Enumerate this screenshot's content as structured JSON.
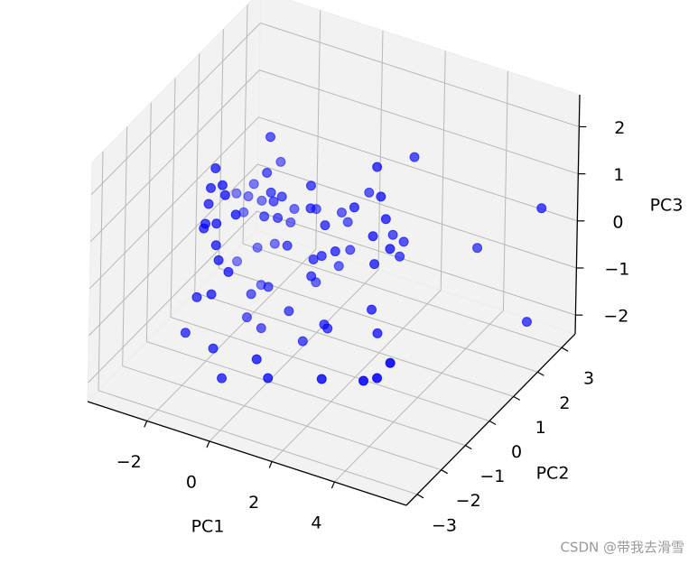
{
  "chart_data": {
    "type": "scatter3d",
    "x_label": "PC1",
    "y_label": "PC2",
    "z_label": "PC3",
    "color": "#0000ff",
    "x": [
      -0.88,
      2.66,
      -1.02,
      -0.97,
      -1.59,
      2.53,
      -0.79,
      -2.43,
      -1.16,
      0.44,
      -2.98,
      -0.7,
      -0.83,
      -2.6,
      -0.48,
      1.24,
      2.67,
      -1.22,
      -2.17,
      -0.74,
      -1.13,
      0.44,
      -0.43,
      1.83,
      -2.74,
      -0.35,
      -1.03,
      0.38,
      -0.6,
      -1.31,
      -0.96,
      -1.24,
      0.91,
      0.58,
      2.84,
      -1.36,
      5.68,
      2.02,
      2.44,
      2.37,
      2.99,
      -0.96,
      3.66,
      -1.73,
      -0.28,
      -2.28,
      1.25,
      0.67,
      0.82,
      -0.87,
      -2.92,
      0.56,
      0.32,
      2.5,
      2.25,
      -0.55,
      0.5,
      -2.14,
      -0.86,
      -0.4,
      -1.54,
      -1.08,
      -1.4,
      -0.19,
      -1.52,
      2.44,
      5.28,
      0.94,
      1.05,
      -1.06,
      -1.88,
      0.27,
      2.64,
      -0.99,
      0.4,
      4.65,
      -0.7,
      0.77,
      2.48,
      3.81,
      4.24
    ],
    "y": [
      0.06,
      1.46,
      -2.05,
      0.06,
      1.46,
      0.06,
      -2.05,
      1.46,
      -2.05,
      0.06,
      1.46,
      -2.05,
      0.06,
      1.46,
      0.06,
      1.46,
      0.06,
      -2.05,
      1.46,
      0.06,
      1.46,
      0.06,
      1.46,
      0.06,
      1.46,
      -2.05,
      0.06,
      1.46,
      0.06,
      -2.05,
      -2.05,
      1.46,
      0.06,
      1.46,
      0.06,
      -2.05,
      2.86,
      1.46,
      0.06,
      1.46,
      0.06,
      -2.05,
      2.86,
      1.46,
      0.06,
      1.46,
      0.06,
      1.46,
      0.06,
      -2.05,
      1.46,
      0.06,
      1.46,
      0.06,
      1.46,
      -2.05,
      0.06,
      1.46,
      0.06,
      1.46,
      -2.05,
      -2.05,
      0.06,
      0.06,
      0.06,
      0.06,
      2.86,
      0.06,
      0.06,
      0.06,
      -2.05,
      0.06,
      0.06,
      -2.05,
      -2.05,
      -2.05,
      -2.05,
      -2.05,
      -2.05,
      -2.05,
      -2.05
    ],
    "z": [
      2.05,
      1.66,
      2.45,
      1.27,
      0.64,
      2.15,
      2.14,
      -0.01,
      2.0,
      1.3,
      -0.33,
      1.95,
      0.88,
      -0.31,
      0.87,
      0.6,
      1.55,
      1.65,
      -0.31,
      0.71,
      -0.26,
      0.82,
      -0.11,
      1.14,
      -0.68,
      1.61,
      0.33,
      -0.01,
      0.39,
      1.21,
      1.29,
      -0.57,
      0.56,
      -0.17,
      1.11,
      1.1,
      0.5,
      -0.13,
      0.66,
      -0.2,
      0.51,
      0.83,
      -0.78,
      -1.13,
      -0.13,
      -1.33,
      0.08,
      -0.74,
      -0.11,
      0.53,
      -1.76,
      -0.24,
      -1.16,
      0.08,
      -0.54,
      0.35,
      -0.61,
      -2.09,
      -1.13,
      -1.66,
      -0.4,
      -0.24,
      -1.4,
      -1.5,
      -1.92,
      -0.9,
      -2.0,
      -1.54,
      -1.6,
      -2.05,
      -1.23,
      -2.04,
      -1.36,
      -1.37,
      -1.3,
      -0.46,
      -1.94,
      -1.62,
      -1.27,
      -1.02,
      -0.87
    ],
    "xlim": [
      -3.9,
      6.3
    ],
    "ylim": [
      -3.45,
      3.56
    ],
    "zlim": [
      -2.4,
      2.68
    ],
    "xticks": [
      {
        "value": -2,
        "label": "−2"
      },
      0,
      2,
      4
    ],
    "yticks": [
      {
        "value": -3,
        "label": "−3"
      },
      {
        "value": -2,
        "label": "−2"
      },
      {
        "value": -1,
        "label": "−1"
      },
      0,
      1,
      2,
      3
    ],
    "zticks": [
      {
        "value": -2,
        "label": "−2"
      },
      {
        "value": -1,
        "label": "−1"
      },
      0,
      1,
      2
    ],
    "grid": true
  },
  "watermark": "CSDN @带我去滑雪"
}
